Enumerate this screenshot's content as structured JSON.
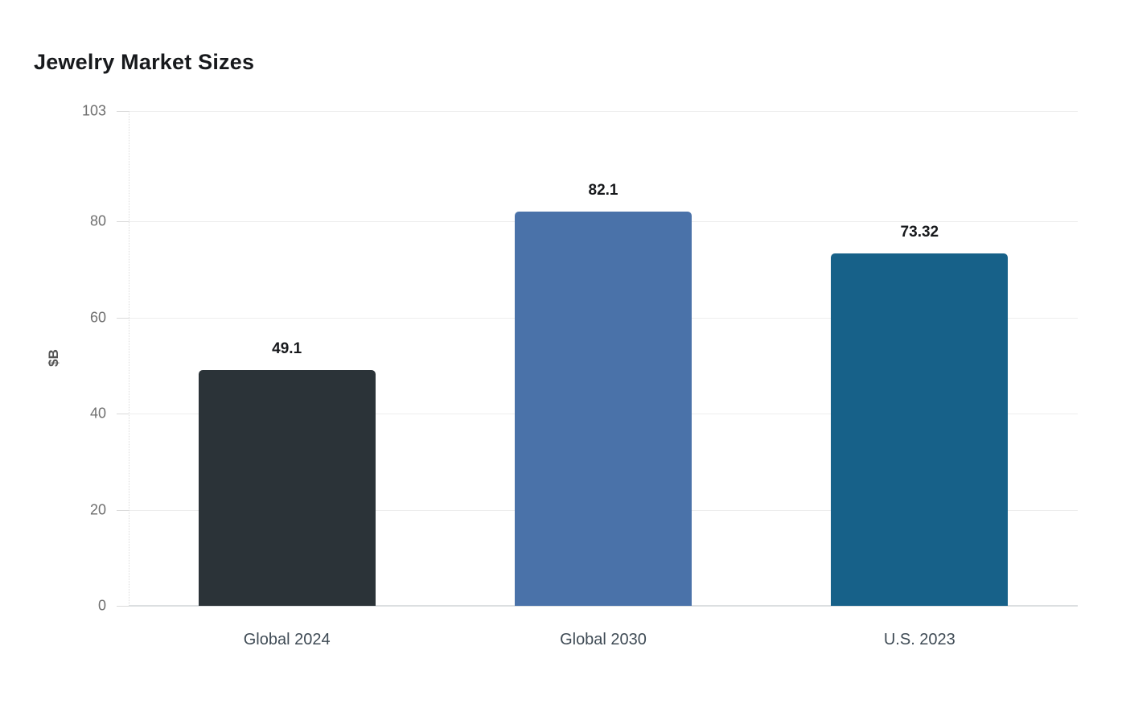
{
  "page": {
    "background": "#ffffff"
  },
  "header": {
    "title": "Jewelry Market Sizes"
  },
  "chart_data": {
    "type": "bar",
    "title": "Jewelry Market Sizes",
    "categories": [
      "Global 2024",
      "Global 2030",
      "U.S. 2023"
    ],
    "values": [
      49.1,
      82.1,
      73.32
    ],
    "value_labels": [
      "49.1",
      "82.1",
      "73.32"
    ],
    "bar_colors": [
      "#2b3338",
      "#4a72a9",
      "#176189"
    ],
    "xlabel": "",
    "ylabel": "$B",
    "ylim": [
      0,
      103
    ],
    "yticks": [
      0,
      20,
      40,
      60,
      80,
      103
    ],
    "grid": "horizontal-light-gray",
    "legend": "none",
    "value_label_position": "above-bar",
    "title_color": "#17191c",
    "tick_label_color": "#6e6e6e",
    "gridline_color": "#ededed"
  }
}
